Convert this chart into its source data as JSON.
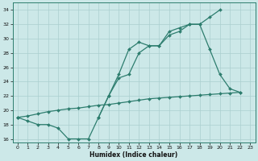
{
  "xlabel": "Humidex (Indice chaleur)",
  "x": [
    0,
    1,
    2,
    3,
    4,
    5,
    6,
    7,
    8,
    9,
    10,
    11,
    12,
    13,
    14,
    15,
    16,
    17,
    18,
    19,
    20,
    21,
    22,
    23
  ],
  "line1_y": [
    19.0,
    18.5,
    18.0,
    18.0,
    17.5,
    16.0,
    16.0,
    16.0,
    19.0,
    22.0,
    25.0,
    28.5,
    29.5,
    29.0,
    29.0,
    31.0,
    31.5,
    32.0,
    32.0,
    33.0,
    34.0,
    null,
    null,
    null
  ],
  "line2_y": [
    19.0,
    null,
    null,
    null,
    null,
    null,
    null,
    null,
    19.0,
    22.0,
    24.5,
    25.0,
    28.0,
    29.0,
    29.0,
    30.5,
    31.0,
    32.0,
    32.0,
    28.5,
    25.0,
    23.0,
    22.5,
    null
  ],
  "line3_y": [
    19.0,
    19.2,
    19.5,
    19.8,
    20.0,
    20.2,
    20.3,
    20.5,
    20.7,
    20.8,
    21.0,
    21.2,
    21.4,
    21.6,
    21.7,
    21.8,
    21.9,
    22.0,
    22.1,
    22.2,
    22.3,
    22.4,
    22.5,
    null
  ],
  "color": "#2d7d6e",
  "bg_color": "#cce8e8",
  "grid_color": "#aacfcf",
  "ylim": [
    15.5,
    35.0
  ],
  "xlim": [
    -0.5,
    23.5
  ],
  "yticks": [
    16,
    18,
    20,
    22,
    24,
    26,
    28,
    30,
    32,
    34
  ],
  "xticks": [
    0,
    1,
    2,
    3,
    4,
    5,
    6,
    7,
    8,
    9,
    10,
    11,
    12,
    13,
    14,
    15,
    16,
    17,
    18,
    19,
    20,
    21,
    22,
    23
  ]
}
